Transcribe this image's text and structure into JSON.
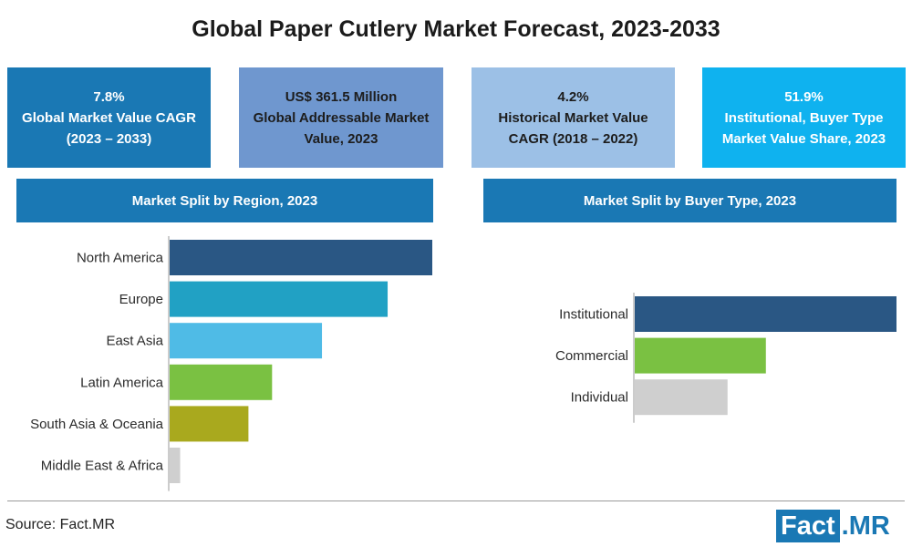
{
  "title": "Global Paper Cutlery Market Forecast, 2023-2033",
  "kpis": [
    {
      "line1": "7.8%",
      "line2": "Global Market Value CAGR",
      "line3": "(2023 – 2033)"
    },
    {
      "line1": "US$ 361.5 Million",
      "line2": "Global Addressable Market",
      "line3": "Value, 2023"
    },
    {
      "line1": "4.2%",
      "line2": "Historical Market Value",
      "line3": "CAGR (2018 – 2022)"
    },
    {
      "line1": "51.9%",
      "line2": "Institutional, Buyer Type",
      "line3": "Market Value Share, 2023"
    }
  ],
  "colors": {
    "north_america": "#2a5784",
    "europe": "#21a1c4",
    "east_asia": "#4fbbe6",
    "latin_america": "#7ac142",
    "south_asia": "#a9a91e",
    "mea": "#cfcfcf",
    "institutional": "#2a5784",
    "commercial": "#7ac142",
    "individual": "#cfcfcf"
  },
  "chart_data": [
    {
      "type": "bar",
      "orientation": "horizontal",
      "title": "Market Split by Region, 2023",
      "categories": [
        "North America",
        "Europe",
        "East Asia",
        "Latin America",
        "South Asia & Oceania",
        "Middle East & Africa"
      ],
      "values": [
        100,
        83,
        58,
        39,
        30,
        4
      ],
      "grid": false,
      "legend": "none"
    },
    {
      "type": "bar",
      "orientation": "horizontal",
      "title": "Market Split by Buyer Type, 2023",
      "categories": [
        "Institutional",
        "Commercial",
        "Individual"
      ],
      "values": [
        51.9,
        26.0,
        18.4
      ],
      "grid": false,
      "legend": "none"
    }
  ],
  "footer": {
    "source": "Source: Fact.MR",
    "logo_part1": "Fact",
    "logo_part2": ".MR"
  }
}
